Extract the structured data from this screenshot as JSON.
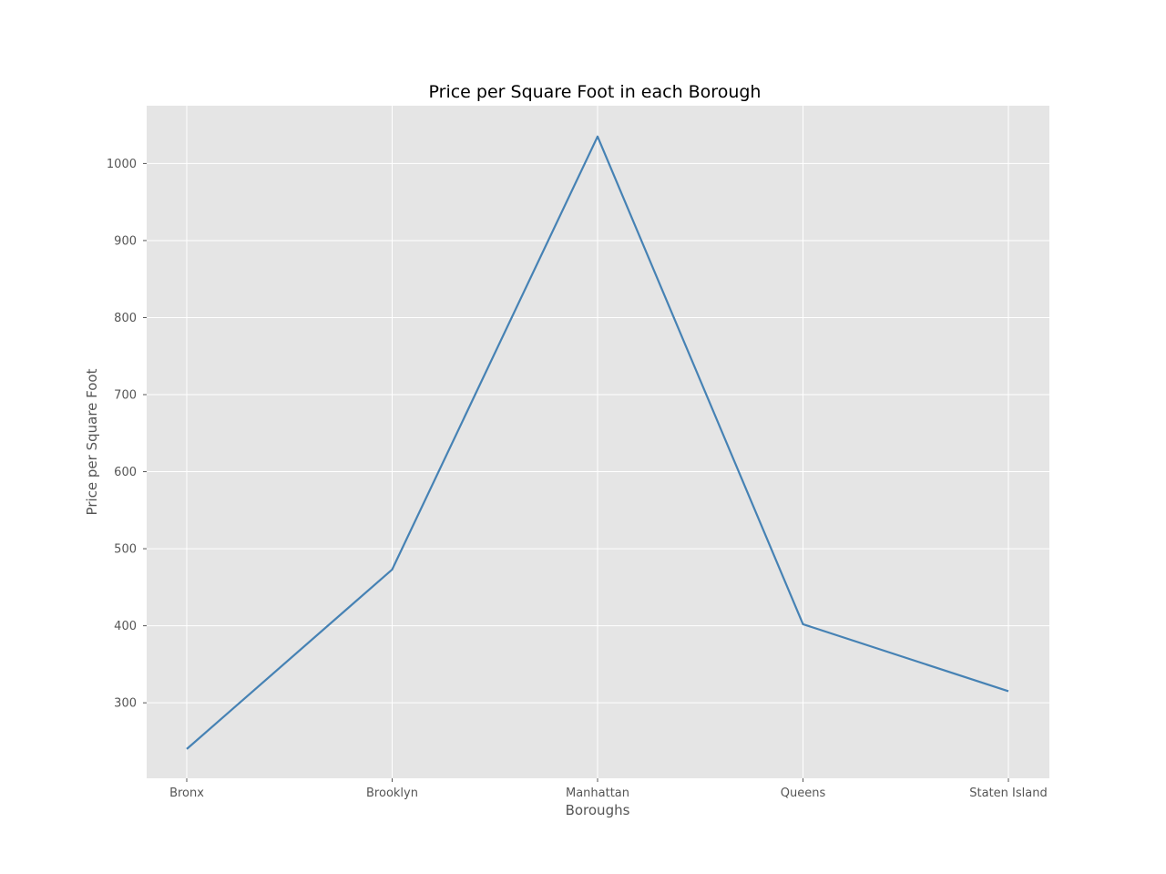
{
  "chart_data": {
    "type": "line",
    "title": "Price per Square Foot in each Borough",
    "xlabel": "Boroughs",
    "ylabel": "Price per Square Foot",
    "categories": [
      "Bronx",
      "Brooklyn",
      "Manhattan",
      "Queens",
      "Staten Island"
    ],
    "series": [
      {
        "values": [
          240,
          473,
          1035,
          402,
          315
        ]
      }
    ],
    "yticks": [
      300,
      400,
      500,
      600,
      700,
      800,
      900,
      1000
    ],
    "ylim": [
      202,
      1075
    ],
    "grid": true,
    "legend": "none",
    "colors": {
      "line": "#4682b4",
      "plot_background": "#e5e5e5",
      "grid": "#ffffff",
      "tick_text": "#555555"
    }
  }
}
